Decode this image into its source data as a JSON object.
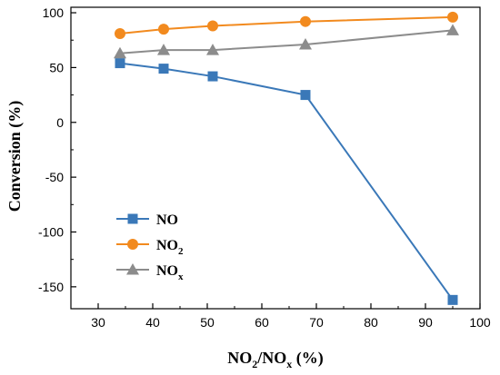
{
  "chart_data": {
    "type": "line",
    "xlabel": {
      "base": "NO",
      "sub1": "2",
      "mid": "/NO",
      "sub2": "x",
      "unit": " (%)"
    },
    "ylabel": "Conversion (%)",
    "xlim": [
      25,
      100
    ],
    "ylim": [
      -170,
      105
    ],
    "xticks": [
      30,
      40,
      50,
      60,
      70,
      80,
      90,
      100
    ],
    "yticks": [
      100,
      50,
      0,
      -50,
      -100,
      -150
    ],
    "grid": false,
    "legend": "middle-left",
    "series": [
      {
        "name": {
          "base": "NO",
          "sub": ""
        },
        "color": "#3a78b8",
        "marker": "square",
        "x": [
          34,
          42,
          51,
          68,
          95
        ],
        "y": [
          54,
          49,
          42,
          25,
          -162
        ]
      },
      {
        "name": {
          "base": "NO",
          "sub": "2"
        },
        "color": "#f28a1e",
        "marker": "circle",
        "x": [
          34,
          42,
          51,
          68,
          95
        ],
        "y": [
          81,
          85,
          88,
          92,
          96
        ]
      },
      {
        "name": {
          "base": "NO",
          "sub": "x"
        },
        "color": "#8c8c8c",
        "marker": "triangle",
        "x": [
          34,
          42,
          51,
          68,
          95
        ],
        "y": [
          63,
          66,
          66,
          71,
          84
        ]
      }
    ]
  }
}
